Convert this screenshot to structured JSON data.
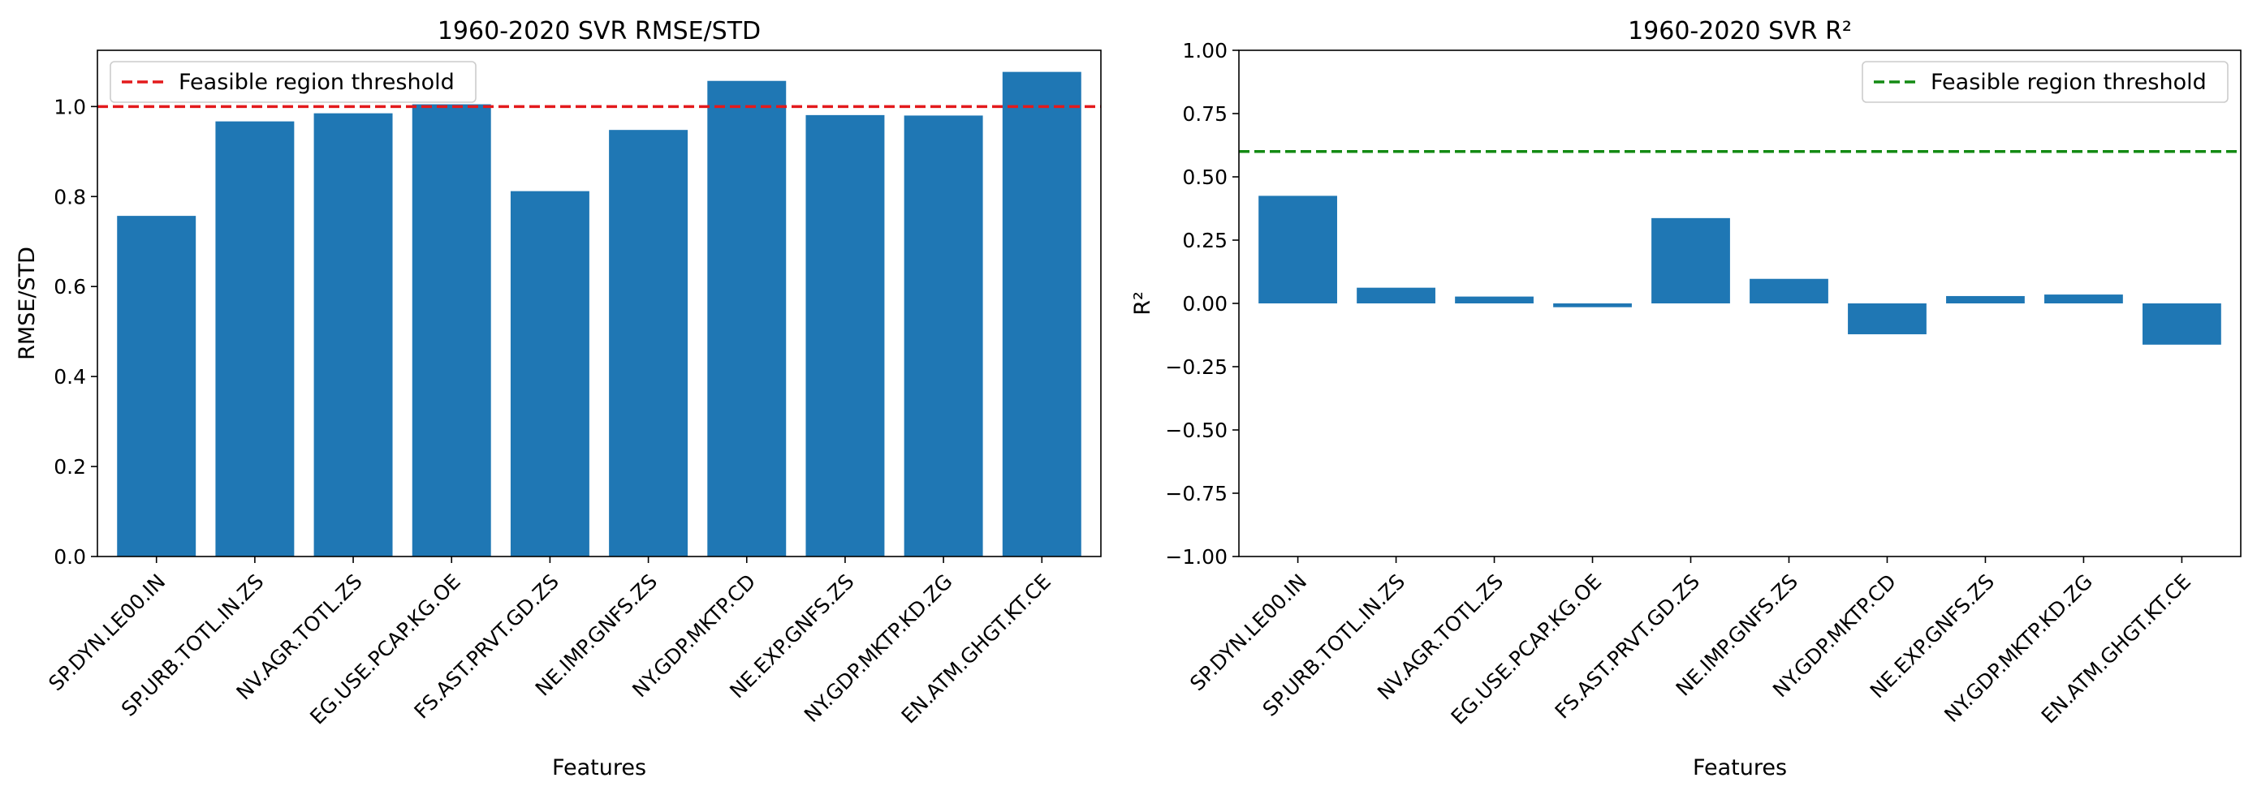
{
  "charts": [
    {
      "type": "bar",
      "title": "1960-2020 SVR  RMSE/STD",
      "xlabel": "Features",
      "ylabel": "RMSE/STD",
      "ylim": [
        0,
        1.125
      ],
      "yticks": [
        0.0,
        0.2,
        0.4,
        0.6,
        0.8,
        1.0
      ],
      "ytick_labels": [
        "0.0",
        "0.2",
        "0.4",
        "0.6",
        "0.8",
        "1.0"
      ],
      "categories": [
        "SP.DYN.LE00.IN",
        "SP.URB.TOTL.IN.ZS",
        "NV.AGR.TOTL.ZS",
        "EG.USE.PCAP.KG.OE",
        "FS.AST.PRVT.GD.ZS",
        "NE.IMP.GNFS.ZS",
        "NY.GDP.MKTP.CD",
        "NE.EXP.GNFS.ZS",
        "NY.GDP.MKTP.KD.ZG",
        "EN.ATM.GHGT.KT.CE"
      ],
      "values": [
        0.757,
        0.967,
        0.985,
        1.005,
        0.812,
        0.948,
        1.057,
        0.981,
        0.98,
        1.077
      ],
      "bar_color": "#1f77b4",
      "threshold": {
        "value": 1.0,
        "color": "#e31a1c",
        "label": "Feasible region threshold"
      },
      "legend_position": "top-left",
      "grid": false
    },
    {
      "type": "bar",
      "title": "1960-2020 SVR  R²",
      "xlabel": "Features",
      "ylabel": "R²",
      "ylim": [
        -1.0,
        1.0
      ],
      "yticks": [
        -1.0,
        -0.75,
        -0.5,
        -0.25,
        0.0,
        0.25,
        0.5,
        0.75,
        1.0
      ],
      "ytick_labels": [
        "−1.00",
        "−0.75",
        "−0.50",
        "−0.25",
        "0.00",
        "0.25",
        "0.50",
        "0.75",
        "1.00"
      ],
      "categories": [
        "SP.DYN.LE00.IN",
        "SP.URB.TOTL.IN.ZS",
        "NV.AGR.TOTL.ZS",
        "EG.USE.PCAP.KG.OE",
        "FS.AST.PRVT.GD.ZS",
        "NE.IMP.GNFS.ZS",
        "NY.GDP.MKTP.CD",
        "NE.EXP.GNFS.ZS",
        "NY.GDP.MKTP.KD.ZG",
        "EN.ATM.GHGT.KT.CE"
      ],
      "values": [
        0.425,
        0.062,
        0.027,
        -0.015,
        0.337,
        0.097,
        -0.122,
        0.029,
        0.035,
        -0.163
      ],
      "bar_color": "#1f77b4",
      "threshold": {
        "value": 0.6,
        "color": "#138a13",
        "label": "Feasible region threshold"
      },
      "legend_position": "top-right",
      "grid": false
    }
  ]
}
